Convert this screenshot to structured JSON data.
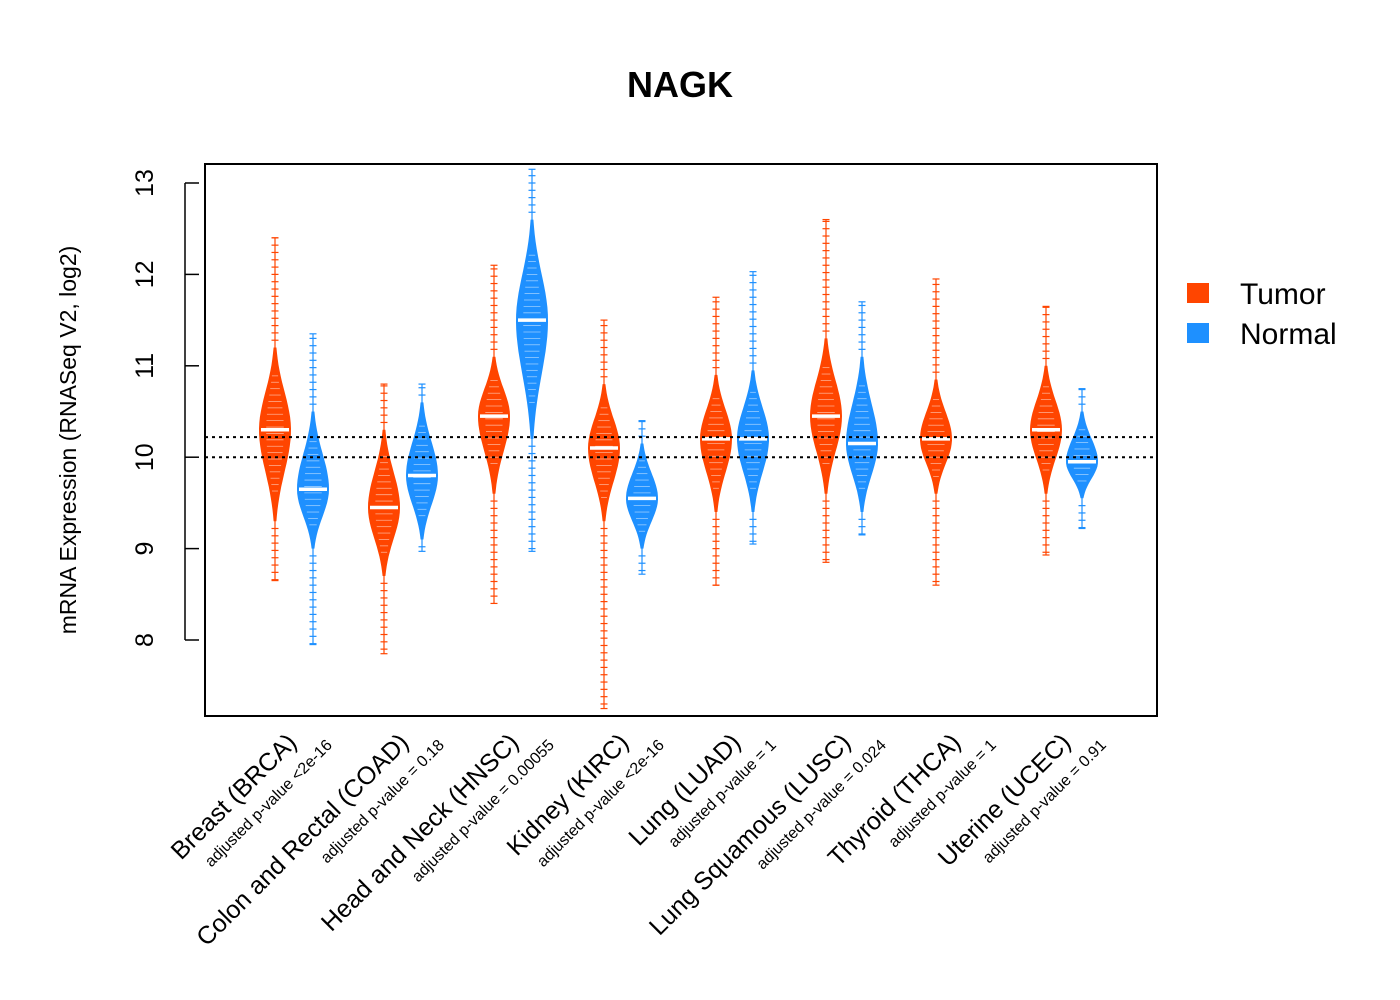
{
  "chart_data": {
    "type": "violin",
    "title": "NAGK",
    "ylabel": "mRNA Expression (RNASeq V2, log2)",
    "xlabel": "",
    "ylim": [
      7.2,
      13.2
    ],
    "yticks": [
      8,
      9,
      10,
      11,
      12,
      13
    ],
    "ytick_labels": [
      "8",
      "9",
      "10",
      "11",
      "12",
      "13"
    ],
    "reference_lines": [
      10.0,
      10.22
    ],
    "legend": {
      "position": "right",
      "entries": [
        {
          "name": "Tumor",
          "color": "#ff4500"
        },
        {
          "name": "Normal",
          "color": "#1e90ff"
        }
      ]
    },
    "groups": [
      {
        "label": "Breast (BRCA)",
        "pvalue_label": "adjusted p-value <2e-16",
        "tumor": {
          "median": 10.3,
          "min": 8.65,
          "max": 12.4,
          "body_low": 9.3,
          "body_high": 11.2
        },
        "normal": {
          "median": 9.65,
          "min": 7.95,
          "max": 11.35,
          "body_low": 9.0,
          "body_high": 10.5
        }
      },
      {
        "label": "Colon and Rectal (COAD)",
        "pvalue_label": "adjusted p-value = 0.18",
        "tumor": {
          "median": 9.45,
          "min": 7.85,
          "max": 10.8,
          "body_low": 8.7,
          "body_high": 10.3
        },
        "normal": {
          "median": 9.8,
          "min": 8.97,
          "max": 10.8,
          "body_low": 9.1,
          "body_high": 10.6
        }
      },
      {
        "label": "Head and Neck (HNSC)",
        "pvalue_label": "adjusted p-value = 0.00055",
        "tumor": {
          "median": 10.45,
          "min": 8.4,
          "max": 12.1,
          "body_low": 9.6,
          "body_high": 11.1
        },
        "normal": {
          "median": 11.5,
          "min": 8.97,
          "max": 13.15,
          "body_low": 10.2,
          "body_high": 12.6
        }
      },
      {
        "label": "Kidney (KIRC)",
        "pvalue_label": "adjusted p-value <2e-16",
        "tumor": {
          "median": 10.1,
          "min": 7.25,
          "max": 11.5,
          "body_low": 9.3,
          "body_high": 10.8
        },
        "normal": {
          "median": 9.55,
          "min": 8.72,
          "max": 10.4,
          "body_low": 9.0,
          "body_high": 10.15
        }
      },
      {
        "label": "Lung (LUAD)",
        "pvalue_label": "adjusted p-value = 1",
        "tumor": {
          "median": 10.2,
          "min": 8.6,
          "max": 11.75,
          "body_low": 9.4,
          "body_high": 10.9
        },
        "normal": {
          "median": 10.2,
          "min": 9.05,
          "max": 12.03,
          "body_low": 9.4,
          "body_high": 10.95
        }
      },
      {
        "label": "Lung Squamous (LUSC)",
        "pvalue_label": "adjusted p-value = 0.024",
        "tumor": {
          "median": 10.45,
          "min": 8.85,
          "max": 12.6,
          "body_low": 9.6,
          "body_high": 11.3
        },
        "normal": {
          "median": 10.15,
          "min": 9.15,
          "max": 11.7,
          "body_low": 9.4,
          "body_high": 11.1
        }
      },
      {
        "label": "Thyroid (THCA)",
        "pvalue_label": "adjusted p-value = 1",
        "tumor": {
          "median": 10.2,
          "min": 8.6,
          "max": 11.95,
          "body_low": 9.6,
          "body_high": 10.85
        }
      },
      {
        "label": "Uterine (UCEC)",
        "pvalue_label": "adjusted p-value = 0.91",
        "tumor": {
          "median": 10.3,
          "min": 8.93,
          "max": 11.65,
          "body_low": 9.6,
          "body_high": 11.0
        },
        "normal": {
          "median": 9.95,
          "min": 9.22,
          "max": 10.75,
          "body_low": 9.55,
          "body_high": 10.5
        }
      }
    ]
  }
}
